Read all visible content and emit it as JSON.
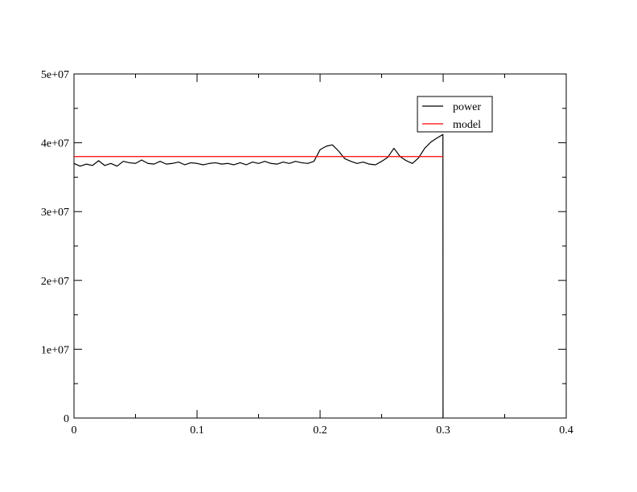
{
  "chart_data": {
    "type": "line",
    "xlim": [
      0,
      0.4
    ],
    "ylim": [
      0,
      50000000
    ],
    "x_ticks": [
      0,
      0.1,
      0.2,
      0.3,
      0.4
    ],
    "x_tick_labels": [
      "0",
      "0.1",
      "0.2",
      "0.3",
      "0.4"
    ],
    "y_ticks": [
      0,
      10000000,
      20000000,
      30000000,
      40000000,
      50000000
    ],
    "y_tick_labels": [
      "0",
      "1e+07",
      "2e+07",
      "3e+07",
      "4e+07",
      "5e+07"
    ],
    "grid": false,
    "legend_position": "top-right",
    "series": [
      {
        "name": "power",
        "color": "#000000",
        "points": [
          [
            0.0,
            37000000
          ],
          [
            0.005,
            36600000
          ],
          [
            0.01,
            36900000
          ],
          [
            0.015,
            36700000
          ],
          [
            0.02,
            37400000
          ],
          [
            0.025,
            36700000
          ],
          [
            0.03,
            37000000
          ],
          [
            0.035,
            36600000
          ],
          [
            0.04,
            37300000
          ],
          [
            0.045,
            37100000
          ],
          [
            0.05,
            37000000
          ],
          [
            0.055,
            37500000
          ],
          [
            0.06,
            37000000
          ],
          [
            0.065,
            36900000
          ],
          [
            0.07,
            37300000
          ],
          [
            0.075,
            36900000
          ],
          [
            0.08,
            37000000
          ],
          [
            0.085,
            37200000
          ],
          [
            0.09,
            36800000
          ],
          [
            0.095,
            37100000
          ],
          [
            0.1,
            37000000
          ],
          [
            0.105,
            36800000
          ],
          [
            0.11,
            37000000
          ],
          [
            0.115,
            37100000
          ],
          [
            0.12,
            36900000
          ],
          [
            0.125,
            37000000
          ],
          [
            0.13,
            36800000
          ],
          [
            0.135,
            37100000
          ],
          [
            0.14,
            36800000
          ],
          [
            0.145,
            37200000
          ],
          [
            0.15,
            37000000
          ],
          [
            0.155,
            37300000
          ],
          [
            0.16,
            37000000
          ],
          [
            0.165,
            36900000
          ],
          [
            0.17,
            37200000
          ],
          [
            0.175,
            37000000
          ],
          [
            0.18,
            37300000
          ],
          [
            0.185,
            37100000
          ],
          [
            0.19,
            37000000
          ],
          [
            0.195,
            37300000
          ],
          [
            0.2,
            39000000
          ],
          [
            0.205,
            39500000
          ],
          [
            0.21,
            39700000
          ],
          [
            0.215,
            38800000
          ],
          [
            0.22,
            37700000
          ],
          [
            0.225,
            37300000
          ],
          [
            0.23,
            37000000
          ],
          [
            0.235,
            37200000
          ],
          [
            0.24,
            36900000
          ],
          [
            0.245,
            36800000
          ],
          [
            0.25,
            37300000
          ],
          [
            0.255,
            37900000
          ],
          [
            0.26,
            39200000
          ],
          [
            0.265,
            38000000
          ],
          [
            0.27,
            37400000
          ],
          [
            0.275,
            37000000
          ],
          [
            0.28,
            37800000
          ],
          [
            0.285,
            39200000
          ],
          [
            0.29,
            40100000
          ],
          [
            0.295,
            40700000
          ],
          [
            0.2998,
            41200000
          ],
          [
            0.2999,
            0
          ]
        ]
      },
      {
        "name": "model",
        "color": "#ff0000",
        "points": [
          [
            0.0,
            38000000
          ],
          [
            0.3,
            38000000
          ]
        ]
      }
    ]
  }
}
